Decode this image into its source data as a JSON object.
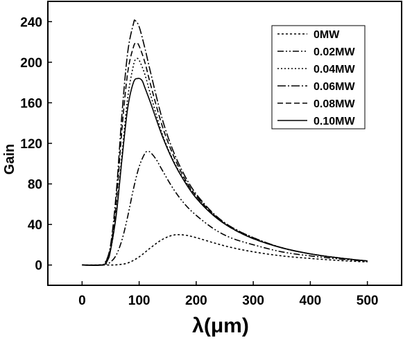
{
  "chart_data": {
    "type": "line",
    "title": "",
    "xlabel": "λ(μm)",
    "ylabel": "Gain",
    "xlim": [
      -60,
      560
    ],
    "ylim": [
      -20,
      260
    ],
    "xticks": [
      0,
      100,
      200,
      300,
      400,
      500
    ],
    "yticks": [
      0,
      40,
      80,
      120,
      160,
      200,
      240
    ],
    "grid": false,
    "legend_position": "top-right",
    "series": [
      {
        "name": "0MW",
        "dash": "3,3",
        "x": [
          0,
          40,
          60,
          80,
          100,
          120,
          140,
          160,
          180,
          200,
          230,
          260,
          300,
          350,
          400,
          450,
          500
        ],
        "y": [
          0,
          0,
          0.2,
          2,
          8,
          17,
          25,
          29.5,
          29.5,
          27,
          22,
          17.5,
          13,
          9,
          6.5,
          4.5,
          3
        ]
      },
      {
        "name": "0.02MW",
        "dash": "9,3,2,3,2,3",
        "x": [
          0,
          30,
          40,
          50,
          60,
          70,
          80,
          90,
          100,
          110,
          115,
          120,
          130,
          140,
          160,
          180,
          200,
          230,
          260,
          300,
          350,
          400,
          450,
          500
        ],
        "y": [
          0,
          0,
          0.5,
          3,
          10,
          25,
          48,
          75,
          97,
          110,
          112,
          111,
          104,
          94,
          75,
          60,
          49,
          36,
          27,
          20,
          13,
          9,
          6,
          3.5
        ]
      },
      {
        "name": "0.04MW",
        "dash": "2,3",
        "x": [
          0,
          30,
          40,
          50,
          60,
          70,
          80,
          90,
          95,
          100,
          110,
          120,
          140,
          160,
          180,
          200,
          230,
          260,
          300,
          350,
          400,
          450,
          500
        ],
        "y": [
          0,
          0,
          2,
          15,
          52,
          110,
          165,
          197,
          203,
          202,
          188,
          168,
          130,
          103,
          83,
          68,
          50,
          38,
          27,
          17,
          11,
          7,
          4
        ]
      },
      {
        "name": "0.06MW",
        "dash": "12,3,2,3",
        "x": [
          0,
          30,
          40,
          50,
          60,
          70,
          80,
          90,
          93,
          100,
          110,
          120,
          140,
          160,
          180,
          200,
          230,
          260,
          300,
          350,
          400,
          450,
          500
        ],
        "y": [
          0,
          0,
          2,
          20,
          72,
          150,
          210,
          238,
          241,
          235,
          214,
          190,
          145,
          112,
          88,
          70,
          51,
          38,
          27,
          17,
          11,
          7,
          4
        ]
      },
      {
        "name": "0.08MW",
        "dash": "8,4",
        "x": [
          0,
          30,
          40,
          50,
          60,
          70,
          80,
          90,
          95,
          100,
          110,
          120,
          140,
          160,
          180,
          200,
          230,
          260,
          300,
          350,
          400,
          450,
          500
        ],
        "y": [
          0,
          0,
          2,
          17,
          63,
          135,
          190,
          215,
          219,
          216,
          200,
          178,
          138,
          108,
          85,
          68,
          50,
          37,
          26,
          17,
          11,
          7,
          4
        ]
      },
      {
        "name": "0.10MW",
        "dash": "",
        "x": [
          0,
          35,
          45,
          50,
          60,
          70,
          80,
          90,
          98,
          105,
          110,
          120,
          140,
          160,
          180,
          200,
          230,
          260,
          300,
          350,
          400,
          450,
          500
        ],
        "y": [
          0,
          0,
          5,
          15,
          50,
          105,
          155,
          180,
          184,
          182,
          175,
          160,
          128,
          102,
          82,
          66,
          49,
          37,
          26,
          17,
          11,
          7,
          4
        ]
      }
    ]
  }
}
